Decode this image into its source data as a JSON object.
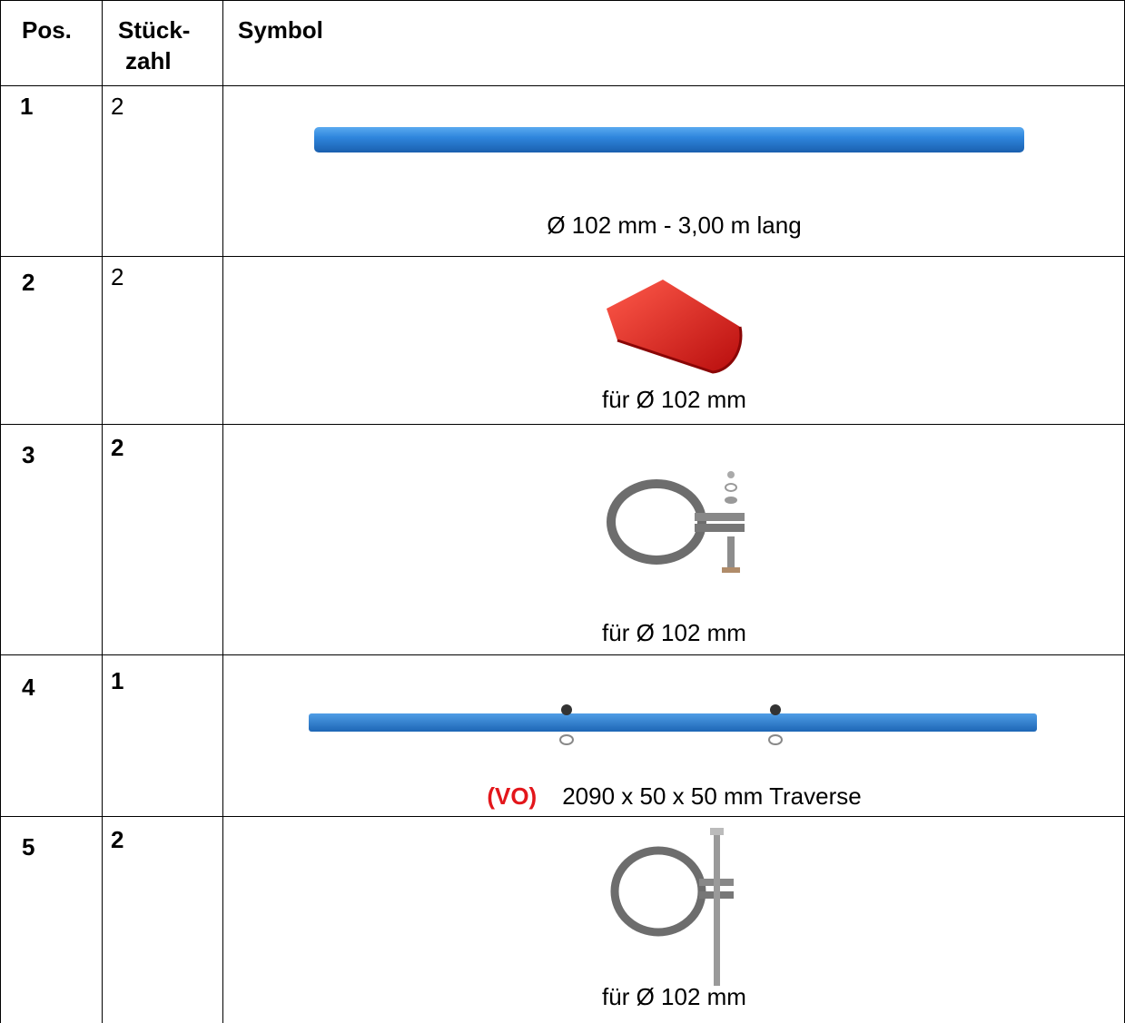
{
  "header": {
    "pos": "Pos.",
    "qty": [
      "Stück-",
      "zahl"
    ],
    "symbol": "Symbol"
  },
  "rows": [
    {
      "pos": "1",
      "qty": "2",
      "caption": "Ø 102 mm - 3,00 m lang"
    },
    {
      "pos": "2",
      "qty": "2",
      "caption": "für Ø 102 mm"
    },
    {
      "pos": "3",
      "qty": "2",
      "caption": "für Ø 102 mm"
    },
    {
      "pos": "4",
      "qty": "1",
      "prefix": "(VO)",
      "caption": "2090 x 50 x 50 mm Traverse"
    },
    {
      "pos": "5",
      "qty": "2",
      "caption": "für Ø 102 mm"
    }
  ]
}
